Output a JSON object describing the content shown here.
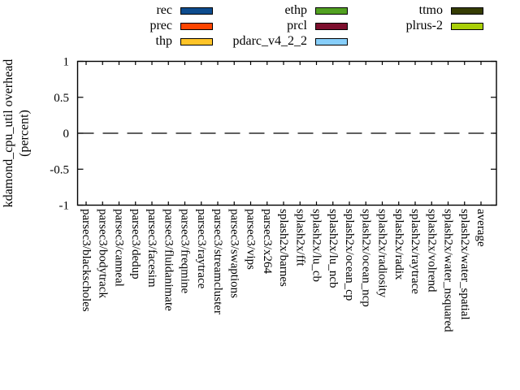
{
  "chart_data": {
    "type": "bar",
    "title": "",
    "ylabel": "kdamond_cpu_util overhead (percent)",
    "ylabel_lines": [
      "kdamond_cpu_util overhead",
      "(percent)"
    ],
    "xlabel": "",
    "ylim": [
      -1,
      1
    ],
    "yticks": [
      "1",
      "0.5",
      "0",
      "-0.5",
      "-1"
    ],
    "ytick_values": [
      1,
      0.5,
      0,
      -0.5,
      -1
    ],
    "grid": false,
    "zero_line_style": "dashed",
    "background_color": "#ffffff",
    "axis_color": "#000000",
    "legend": {
      "position": "top",
      "columns": [
        [
          "rec",
          "prec",
          "thp"
        ],
        [
          "ethp",
          "prcl",
          "pdarc_v4_2_2"
        ],
        [
          "ttmo",
          "plrus-2"
        ]
      ]
    },
    "categories": [
      "parsec3/blackscholes",
      "parsec3/bodytrack",
      "parsec3/canneal",
      "parsec3/dedup",
      "parsec3/facesim",
      "parsec3/fluidanimate",
      "parsec3/freqmine",
      "parsec3/raytrace",
      "parsec3/streamcluster",
      "parsec3/swaptions",
      "parsec3/vips",
      "parsec3/x264",
      "splash2x/barnes",
      "splash2x/fft",
      "splash2x/lu_cb",
      "splash2x/lu_ncb",
      "splash2x/ocean_cp",
      "splash2x/ocean_ncp",
      "splash2x/radiosity",
      "splash2x/radix",
      "splash2x/raytrace",
      "splash2x/volrend",
      "splash2x/water_nsquared",
      "splash2x/water_spatial",
      "average"
    ],
    "series": [
      {
        "name": "rec",
        "color": "#0e4c8e",
        "values": [
          0,
          0,
          0,
          0,
          0,
          0,
          0,
          0,
          0,
          0,
          0,
          0,
          0,
          0,
          0,
          0,
          0,
          0,
          0,
          0,
          0,
          0,
          0,
          0,
          0
        ]
      },
      {
        "name": "prec",
        "color": "#ff4500",
        "values": [
          0,
          0,
          0,
          0,
          0,
          0,
          0,
          0,
          0,
          0,
          0,
          0,
          0,
          0,
          0,
          0,
          0,
          0,
          0,
          0,
          0,
          0,
          0,
          0,
          0
        ]
      },
      {
        "name": "thp",
        "color": "#ffc428",
        "values": [
          0,
          0,
          0,
          0,
          0,
          0,
          0,
          0,
          0,
          0,
          0,
          0,
          0,
          0,
          0,
          0,
          0,
          0,
          0,
          0,
          0,
          0,
          0,
          0,
          0
        ]
      },
      {
        "name": "ethp",
        "color": "#52a121",
        "values": [
          0,
          0,
          0,
          0,
          0,
          0,
          0,
          0,
          0,
          0,
          0,
          0,
          0,
          0,
          0,
          0,
          0,
          0,
          0,
          0,
          0,
          0,
          0,
          0,
          0
        ]
      },
      {
        "name": "prcl",
        "color": "#7d0f2d",
        "values": [
          0,
          0,
          0,
          0,
          0,
          0,
          0,
          0,
          0,
          0,
          0,
          0,
          0,
          0,
          0,
          0,
          0,
          0,
          0,
          0,
          0,
          0,
          0,
          0,
          0
        ]
      },
      {
        "name": "pdarc_v4_2_2",
        "color": "#87cefa",
        "values": [
          0,
          0,
          0,
          0,
          0,
          0,
          0,
          0,
          0,
          0,
          0,
          0,
          0,
          0,
          0,
          0,
          0,
          0,
          0,
          0,
          0,
          0,
          0,
          0,
          0
        ]
      },
      {
        "name": "ttmo",
        "color": "#363d04",
        "values": [
          0,
          0,
          0,
          0,
          0,
          0,
          0,
          0,
          0,
          0,
          0,
          0,
          0,
          0,
          0,
          0,
          0,
          0,
          0,
          0,
          0,
          0,
          0,
          0,
          0
        ]
      },
      {
        "name": "plrus-2",
        "color": "#a9cf08",
        "values": [
          0,
          0,
          0,
          0,
          0,
          0,
          0,
          0,
          0,
          0,
          0,
          0,
          0,
          0,
          0,
          0,
          0,
          0,
          0,
          0,
          0,
          0,
          0,
          0,
          0
        ]
      }
    ]
  }
}
